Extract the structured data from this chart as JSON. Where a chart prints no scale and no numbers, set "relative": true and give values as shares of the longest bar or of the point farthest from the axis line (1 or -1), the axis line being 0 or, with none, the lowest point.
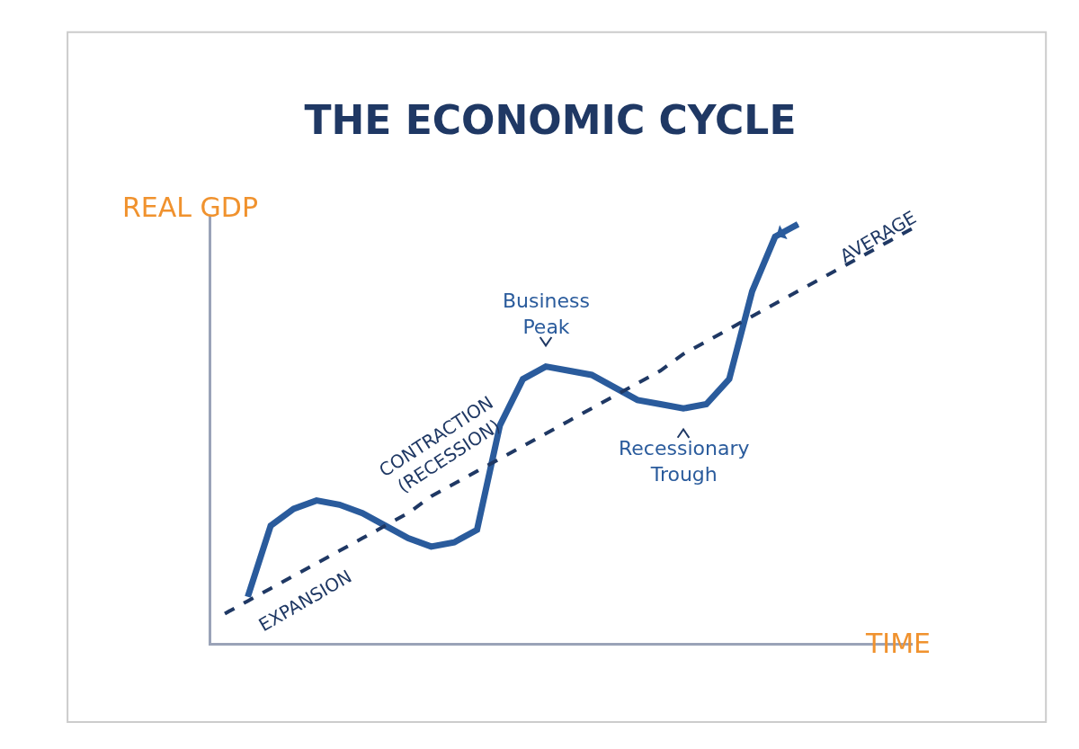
{
  "chart_data": {
    "type": "line",
    "title": "THE ECONOMIC CYCLE",
    "xlabel": "TIME",
    "ylabel": "REAL GDP",
    "relative": true,
    "categories": [
      null,
      null,
      null,
      null,
      null,
      null,
      null,
      null,
      null,
      null,
      null,
      null,
      null,
      null,
      null,
      null,
      null,
      null,
      null,
      null,
      null,
      null,
      null,
      null,
      null,
      null,
      null,
      null,
      null,
      null,
      null
    ],
    "series": [
      {
        "color": "#2a5b9c",
        "line_style": "solid",
        "values": [
          null,
          0.11,
          0.28,
          0.32,
          0.34,
          0.33,
          0.31,
          0.28,
          0.25,
          0.23,
          0.24,
          0.27,
          0.52,
          0.63,
          0.66,
          0.65,
          0.64,
          0.61,
          0.58,
          0.57,
          0.56,
          0.57,
          0.63,
          0.84,
          0.97,
          1,
          null,
          null,
          null,
          null,
          null
        ]
      },
      {
        "color": "#1f3864",
        "line_style": "dashed",
        "values": [
          0.07,
          0.1,
          0.13,
          0.16,
          0.19,
          0.22,
          0.25,
          0.28,
          0.31,
          0.35,
          0.38,
          0.41,
          0.44,
          0.47,
          0.5,
          0.53,
          0.56,
          0.59,
          0.62,
          0.65,
          0.69,
          0.72,
          0.75,
          0.78,
          0.81,
          0.84,
          0.87,
          0.9,
          0.93,
          0.96,
          0.99
        ]
      }
    ],
    "annotations": [
      "Business Peak",
      "Recessionary Trough",
      "CONTRACTION (RECESSION)",
      "EXPANSION",
      "AVERAGE"
    ]
  }
}
